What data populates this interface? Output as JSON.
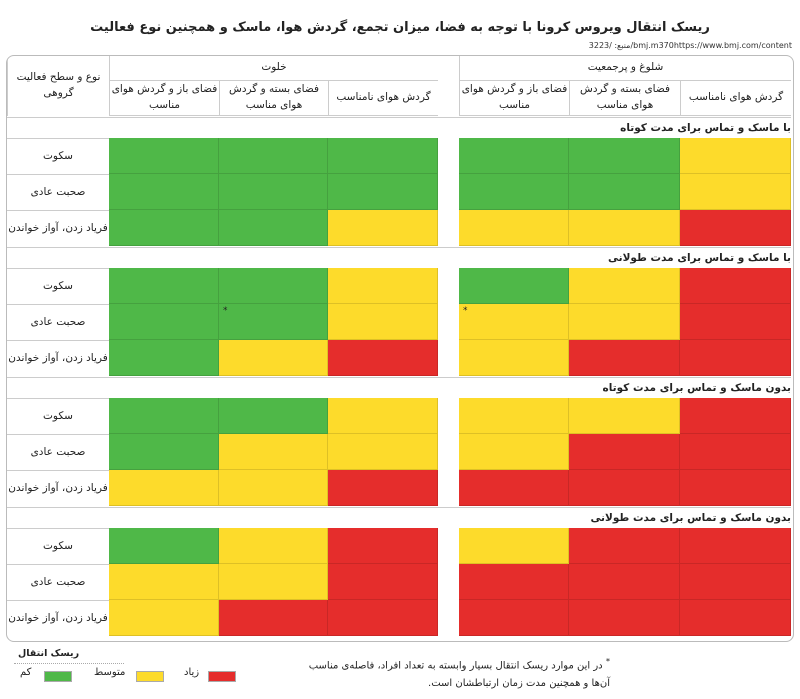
{
  "title": "ریسک انتقال ویروس کرونا با توجه به فضا، میزان تجمع، گردش هوا، ماسک و همچنین نوع فعالیت",
  "source": "منبع: /3223/bmj.m370https://www.bmj.com/content",
  "header": {
    "corner": "نوع و سطح فعالیت گروهی",
    "groups": [
      "خلوت",
      "شلوغ و پرجمعیت"
    ],
    "columns": [
      "فضای باز و گردش هوای مناسب",
      "فضای بسته و گردش هوای مناسب",
      "گردش هوای نامناسب"
    ]
  },
  "colors": {
    "low": "#4fb848",
    "medium": "#fddb2b",
    "high": "#e52d2c"
  },
  "chart_data": {
    "type": "heatmap",
    "title": "ریسک انتقال ویروس کرونا با توجه به فضا، میزان تجمع، گردش هوا، ماسک و همچنین نوع فعالیت",
    "column_groups": [
      "خلوت",
      "شلوغ و پرجمعیت"
    ],
    "columns": [
      "فضای باز و گردش هوای مناسب",
      "فضای بسته و گردش هوای مناسب",
      "گردش هوای نامناسب"
    ],
    "levels": {
      "low": "کم",
      "medium": "متوسط",
      "high": "زیاد"
    },
    "sections": [
      {
        "title": "با ماسک و تماس برای مدت کوتاه",
        "rows": [
          {
            "label": "سکوت",
            "values": [
              "low",
              "low",
              "low",
              "low",
              "low",
              "medium"
            ]
          },
          {
            "label": "صحبت عادی",
            "values": [
              "low",
              "low",
              "low",
              "low",
              "low",
              "medium"
            ]
          },
          {
            "label": "فریاد زدن، آواز خواندن",
            "values": [
              "low",
              "low",
              "medium",
              "medium",
              "medium",
              "high"
            ]
          }
        ]
      },
      {
        "title": "با ماسک و تماس برای مدت طولانی",
        "rows": [
          {
            "label": "سکوت",
            "values": [
              "low",
              "low",
              "medium",
              "low",
              "medium",
              "high"
            ]
          },
          {
            "label": "صحبت عادی",
            "values": [
              "low",
              "low",
              "medium",
              "medium",
              "medium",
              "high"
            ],
            "asterisks": [
              1,
              3
            ]
          },
          {
            "label": "فریاد زدن، آواز خواندن",
            "values": [
              "low",
              "medium",
              "high",
              "medium",
              "high",
              "high"
            ]
          }
        ]
      },
      {
        "title": "بدون ماسک و تماس برای مدت کوتاه",
        "rows": [
          {
            "label": "سکوت",
            "values": [
              "low",
              "low",
              "medium",
              "medium",
              "medium",
              "high"
            ]
          },
          {
            "label": "صحبت عادی",
            "values": [
              "low",
              "medium",
              "medium",
              "medium",
              "high",
              "high"
            ]
          },
          {
            "label": "فریاد زدن، آواز خواندن",
            "values": [
              "medium",
              "medium",
              "high",
              "high",
              "high",
              "high"
            ]
          }
        ]
      },
      {
        "title": "بدون ماسک و تماس برای مدت طولانی",
        "rows": [
          {
            "label": "سکوت",
            "values": [
              "low",
              "medium",
              "high",
              "medium",
              "high",
              "high"
            ]
          },
          {
            "label": "صحبت عادی",
            "values": [
              "medium",
              "medium",
              "high",
              "high",
              "high",
              "high"
            ]
          },
          {
            "label": "فریاد زدن، آواز خواندن",
            "values": [
              "medium",
              "high",
              "high",
              "high",
              "high",
              "high"
            ]
          }
        ]
      }
    ],
    "legend": {
      "title": "ریسک انتقال",
      "position": "bottom-left"
    }
  },
  "legend": {
    "title": "ریسک انتقال",
    "low": "کم",
    "medium": "متوسط",
    "high": "زیاد"
  },
  "footnote": {
    "mark": "*",
    "text": "در این موارد ریسک انتقال بسیار وابسته به تعداد افراد، فاصله‌ی مناسب آن‌ها و همچنین مدت زمان ارتباطشان است."
  }
}
